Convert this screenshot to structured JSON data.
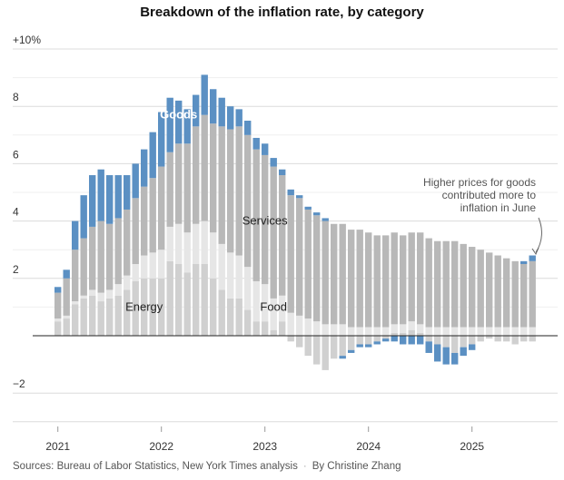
{
  "chart_data": {
    "type": "bar",
    "stacked": true,
    "title": "Breakdown of the inflation rate, by category",
    "ylim": [
      -3,
      10
    ],
    "y_ticks": [
      {
        "value": 10,
        "label": "+10%"
      },
      {
        "value": 8,
        "label": "8"
      },
      {
        "value": 6,
        "label": "6"
      },
      {
        "value": 4,
        "label": "4"
      },
      {
        "value": 2,
        "label": "2"
      },
      {
        "value": -2,
        "label": "−2"
      }
    ],
    "x_ticks": [
      "2021",
      "2022",
      "2023",
      "2024",
      "2025"
    ],
    "grid": true,
    "series": [
      {
        "name": "Energy",
        "color": "#d0d0d0",
        "values": [
          0.5,
          0.6,
          1.1,
          1.3,
          1.4,
          1.2,
          1.3,
          1.4,
          1.6,
          1.9,
          2.0,
          2.0,
          2.0,
          2.6,
          2.5,
          2.2,
          2.5,
          2.5,
          2.0,
          1.6,
          1.3,
          1.3,
          0.9,
          0.5,
          0.5,
          0.2,
          0.5,
          -0.2,
          -0.4,
          -0.7,
          -1.0,
          -1.2,
          -0.8,
          -0.7,
          -0.5,
          -0.3,
          -0.3,
          -0.2,
          -0.1,
          0.1,
          0.1,
          0.2,
          0.1,
          -0.2,
          -0.3,
          -0.4,
          -0.6,
          -0.4,
          -0.3,
          -0.2,
          -0.1,
          -0.2,
          -0.2,
          -0.3,
          -0.2,
          -0.2
        ]
      },
      {
        "name": "Food",
        "color": "#e6e6e6",
        "values": [
          0.1,
          0.1,
          0.1,
          0.1,
          0.2,
          0.3,
          0.3,
          0.4,
          0.5,
          0.6,
          0.8,
          0.9,
          1.0,
          1.2,
          1.4,
          1.4,
          1.4,
          1.5,
          1.6,
          1.6,
          1.6,
          1.5,
          1.5,
          1.4,
          1.3,
          1.1,
          0.9,
          0.8,
          0.7,
          0.6,
          0.5,
          0.4,
          0.4,
          0.4,
          0.3,
          0.3,
          0.3,
          0.3,
          0.3,
          0.3,
          0.3,
          0.3,
          0.3,
          0.3,
          0.3,
          0.3,
          0.3,
          0.3,
          0.3,
          0.3,
          0.3,
          0.3,
          0.3,
          0.3,
          0.3,
          0.3
        ]
      },
      {
        "name": "Services",
        "color": "#b8b8b8",
        "values": [
          0.9,
          1.3,
          1.8,
          2.0,
          2.2,
          2.5,
          2.3,
          2.3,
          2.3,
          2.3,
          2.4,
          2.6,
          2.9,
          2.6,
          2.8,
          3.1,
          3.4,
          3.7,
          3.8,
          4.1,
          4.3,
          4.5,
          4.6,
          4.6,
          4.5,
          4.6,
          4.2,
          4.1,
          4.1,
          3.8,
          3.7,
          3.6,
          3.5,
          3.5,
          3.4,
          3.4,
          3.3,
          3.2,
          3.2,
          3.2,
          3.1,
          3.1,
          3.2,
          3.1,
          3.0,
          3.0,
          3.0,
          2.9,
          2.8,
          2.7,
          2.6,
          2.5,
          2.4,
          2.3,
          2.2,
          2.3
        ]
      },
      {
        "name": "Goods",
        "color": "#5b90c3",
        "values": [
          0.2,
          0.3,
          1.0,
          1.5,
          1.8,
          1.8,
          1.7,
          1.5,
          1.2,
          1.2,
          1.3,
          1.6,
          1.9,
          1.9,
          1.5,
          1.2,
          1.1,
          1.4,
          1.2,
          1.0,
          0.8,
          0.6,
          0.5,
          0.4,
          0.4,
          0.3,
          0.2,
          0.2,
          0.1,
          0.1,
          0.1,
          0.1,
          0.0,
          -0.1,
          -0.1,
          -0.1,
          -0.1,
          -0.1,
          -0.1,
          -0.2,
          -0.3,
          -0.3,
          -0.3,
          -0.4,
          -0.6,
          -0.6,
          -0.4,
          -0.3,
          -0.2,
          0.0,
          0.0,
          0.0,
          0.0,
          0.0,
          0.1,
          0.2
        ]
      }
    ],
    "series_labels": {
      "goods": "Goods",
      "services": "Services",
      "energy": "Energy",
      "food": "Food"
    },
    "annotation": [
      "Higher prices for goods",
      "contributed more to",
      "inflation in June"
    ]
  },
  "footer": {
    "sources": "Sources: Bureau of Labor Statistics, New York Times analysis",
    "byline": "By Christine Zhang"
  }
}
